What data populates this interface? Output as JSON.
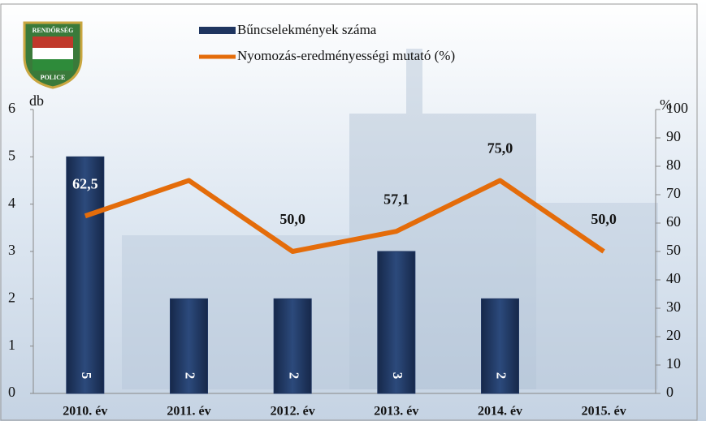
{
  "chart_data": {
    "type": "bar-line",
    "categories": [
      "2010. év",
      "2011. év",
      "2012. év",
      "2013. év",
      "2014. év",
      "2015. év"
    ],
    "series": [
      {
        "name": "Bűncselekmények száma",
        "type": "bar",
        "color": "#1f3560",
        "values": [
          5,
          2,
          2,
          3,
          2,
          null
        ]
      },
      {
        "name": "Nyomozás-eredményességi mutató (%)",
        "type": "line",
        "axis": "y2",
        "color": "#e46c0a",
        "values": [
          62.5,
          75,
          50,
          57.1,
          75,
          50
        ],
        "value_labels": [
          "62,5",
          null,
          "50,0",
          "57,1",
          "75,0",
          "50,0"
        ]
      }
    ],
    "ylabel": "db",
    "y2label": "%",
    "ylim": [
      0,
      6
    ],
    "yticks": [
      0,
      1,
      2,
      3,
      4,
      5,
      6
    ],
    "y2lim": [
      0,
      100
    ],
    "y2ticks": [
      0,
      10,
      20,
      30,
      40,
      50,
      60,
      70,
      80,
      90,
      100
    ]
  },
  "logo": {
    "top": "RENDŐRSÉG",
    "bottom": "POLICE"
  }
}
